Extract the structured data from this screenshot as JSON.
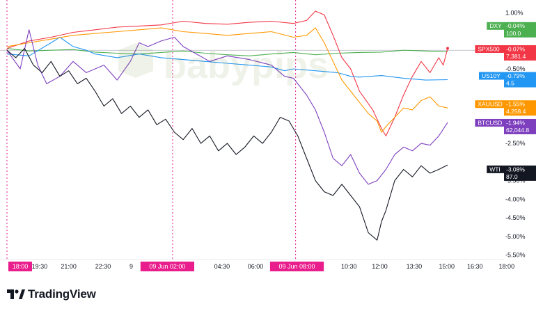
{
  "brand": {
    "name": "TradingView",
    "icon": "tradingview-logo-icon"
  },
  "watermark": {
    "text": "babypips"
  },
  "colors": {
    "DXY": "#4caf50",
    "SPX500": "#f23645",
    "US10Y": "#2196f3",
    "XAUUSD": "#ff9800",
    "BTCUSD": "#7e3fbf",
    "WTI": "#131722",
    "highlight": "#e91e8c"
  },
  "chart_data": {
    "type": "line",
    "ylim": [
      -5.6,
      1.2
    ],
    "yticks": [
      "1.00%",
      "0.50%",
      "-0.50%",
      "-1.50%",
      "-2.50%",
      "-3.50%",
      "-4.00%",
      "-4.50%",
      "-5.00%",
      "-5.50%"
    ],
    "ytick_values": [
      1.0,
      0.5,
      -0.5,
      -1.5,
      -2.5,
      -3.5,
      -4.0,
      -4.5,
      -5.0,
      -5.5
    ],
    "xlim": [
      0,
      100
    ],
    "xticks": [
      {
        "label": "18:00",
        "x": 3,
        "highlight": true
      },
      {
        "label": "19:30",
        "x": 7.4
      },
      {
        "label": "21:00",
        "x": 14
      },
      {
        "label": "22:30",
        "x": 21.8
      },
      {
        "label": "9",
        "x": 28.2
      },
      {
        "label": "09 Jun   02:00",
        "x": 36.4,
        "highlight": true
      },
      {
        "label": "04:30",
        "x": 48.8
      },
      {
        "label": "06:00",
        "x": 56.4
      },
      {
        "label": "09 Jun   08:00",
        "x": 65.8,
        "highlight": true
      },
      {
        "label": "10:30",
        "x": 77.6
      },
      {
        "label": "12:00",
        "x": 84.6
      },
      {
        "label": "13:30",
        "x": 92.4
      },
      {
        "label": "15:00",
        "x": 99.8
      }
    ],
    "tail_xticks": [
      {
        "label": "16:30",
        "x": 106.2
      },
      {
        "label": "18:00",
        "x": 113.4
      }
    ],
    "vlines": [
      0,
      37.6,
      65.5
    ],
    "baseline": 0,
    "series": [
      {
        "name": "DXY",
        "pct": "-0.04%",
        "price": "100.0",
        "label_y": 0.55,
        "x": [
          0,
          5,
          10,
          15,
          20,
          25,
          30,
          35,
          40,
          45,
          50,
          55,
          60,
          65,
          70,
          75,
          80,
          85,
          90,
          95,
          100
        ],
        "y": [
          0.05,
          -0.02,
          0.0,
          0.02,
          -0.05,
          -0.08,
          -0.1,
          -0.06,
          -0.02,
          -0.08,
          -0.12,
          -0.15,
          -0.1,
          -0.06,
          -0.12,
          -0.08,
          -0.06,
          -0.05,
          0.0,
          -0.02,
          -0.04
        ]
      },
      {
        "name": "SPX500",
        "pct": "-0.07%",
        "price": "7,381.4",
        "label_y": -0.07,
        "x": [
          0,
          5,
          10,
          15,
          20,
          25,
          30,
          35,
          40,
          45,
          50,
          55,
          60,
          65,
          68,
          70,
          72,
          74,
          76,
          78,
          80,
          83,
          85,
          86,
          88,
          90,
          92,
          94,
          96,
          98,
          99,
          100
        ],
        "y": [
          0.05,
          0.25,
          0.35,
          0.48,
          0.55,
          0.62,
          0.65,
          0.68,
          0.78,
          0.72,
          0.7,
          0.75,
          0.78,
          0.72,
          0.8,
          1.05,
          0.95,
          0.4,
          -0.2,
          -0.5,
          -1.1,
          -1.6,
          -2.1,
          -2.3,
          -1.8,
          -1.2,
          -0.7,
          -0.3,
          -0.6,
          -0.2,
          -0.4,
          0.05
        ]
      },
      {
        "name": "US10Y",
        "pct": "-0.79%",
        "price": "4.5",
        "label_y": -0.79,
        "x": [
          0,
          5,
          10,
          12,
          15,
          18,
          20,
          25,
          30,
          35,
          40,
          45,
          50,
          55,
          60,
          63,
          65,
          70,
          75,
          78,
          80,
          85,
          90,
          95,
          100
        ],
        "y": [
          -0.1,
          -0.15,
          0.2,
          0.35,
          0.1,
          0.0,
          -0.1,
          -0.2,
          -0.1,
          -0.2,
          -0.25,
          -0.3,
          -0.35,
          -0.4,
          -0.45,
          -0.55,
          -0.5,
          -0.55,
          -0.6,
          -0.7,
          -0.72,
          -0.68,
          -0.75,
          -0.8,
          -0.79
        ]
      },
      {
        "name": "XAUUSD",
        "pct": "-1.55%",
        "price": "4,258.4",
        "label_y": -1.55,
        "x": [
          0,
          5,
          10,
          15,
          20,
          25,
          30,
          35,
          40,
          45,
          50,
          55,
          60,
          65,
          68,
          70,
          72,
          74,
          76,
          78,
          80,
          82,
          84,
          85,
          86,
          88,
          90,
          92,
          94,
          96,
          98,
          100
        ],
        "y": [
          0.1,
          0.2,
          0.3,
          0.4,
          0.45,
          0.5,
          0.55,
          0.6,
          0.5,
          0.45,
          0.4,
          0.45,
          0.5,
          0.35,
          0.4,
          0.6,
          0.2,
          -0.3,
          -0.8,
          -1.1,
          -1.4,
          -1.7,
          -1.9,
          -2.2,
          -2.05,
          -1.8,
          -1.55,
          -1.6,
          -1.35,
          -1.25,
          -1.5,
          -1.55
        ]
      },
      {
        "name": "BTCUSD",
        "pct": "-1.94%",
        "price": "62,044.8",
        "label_y": -2.05,
        "x": [
          0,
          3,
          5,
          7,
          9,
          12,
          15,
          18,
          22,
          25,
          28,
          30,
          32,
          35,
          38,
          40,
          43,
          46,
          50,
          55,
          60,
          63,
          65,
          68,
          70,
          72,
          74,
          76,
          78,
          80,
          82,
          84,
          86,
          88,
          90,
          92,
          94,
          96,
          98,
          100
        ],
        "y": [
          0.0,
          -0.5,
          0.55,
          -0.4,
          -0.9,
          -0.7,
          -0.3,
          -0.6,
          -0.4,
          -0.8,
          -0.3,
          0.2,
          0.1,
          0.25,
          0.35,
          0.1,
          -0.1,
          -0.3,
          -0.15,
          -0.25,
          -0.4,
          -0.7,
          -0.75,
          -1.2,
          -1.6,
          -2.2,
          -2.9,
          -3.1,
          -2.8,
          -3.3,
          -3.6,
          -3.5,
          -3.2,
          -2.8,
          -2.6,
          -2.7,
          -2.5,
          -2.55,
          -2.3,
          -1.94
        ]
      },
      {
        "name": "WTI",
        "pct": "-3.08%",
        "price": "87.0",
        "label_y": -3.3,
        "x": [
          0,
          2,
          4,
          6,
          8,
          10,
          12,
          14,
          16,
          18,
          20,
          22,
          24,
          26,
          28,
          30,
          32,
          34,
          36,
          38,
          40,
          42,
          44,
          46,
          48,
          50,
          52,
          54,
          56,
          58,
          60,
          62,
          64,
          66,
          68,
          70,
          72,
          74,
          76,
          78,
          80,
          82,
          84,
          85,
          86,
          88,
          90,
          92,
          94,
          96,
          98,
          100
        ],
        "y": [
          0.0,
          -0.2,
          0.05,
          -0.4,
          -0.6,
          -0.3,
          -0.7,
          -0.55,
          -0.9,
          -0.75,
          -1.1,
          -1.5,
          -1.3,
          -1.7,
          -1.5,
          -1.8,
          -1.6,
          -2.0,
          -1.85,
          -2.2,
          -2.4,
          -2.1,
          -2.5,
          -2.3,
          -2.7,
          -2.5,
          -2.8,
          -2.6,
          -2.3,
          -2.5,
          -2.2,
          -1.8,
          -1.9,
          -2.3,
          -2.9,
          -3.5,
          -3.8,
          -3.9,
          -3.6,
          -3.9,
          -4.2,
          -4.9,
          -5.1,
          -4.6,
          -4.3,
          -3.5,
          -3.2,
          -3.4,
          -3.1,
          -3.3,
          -3.2,
          -3.08
        ]
      }
    ]
  }
}
